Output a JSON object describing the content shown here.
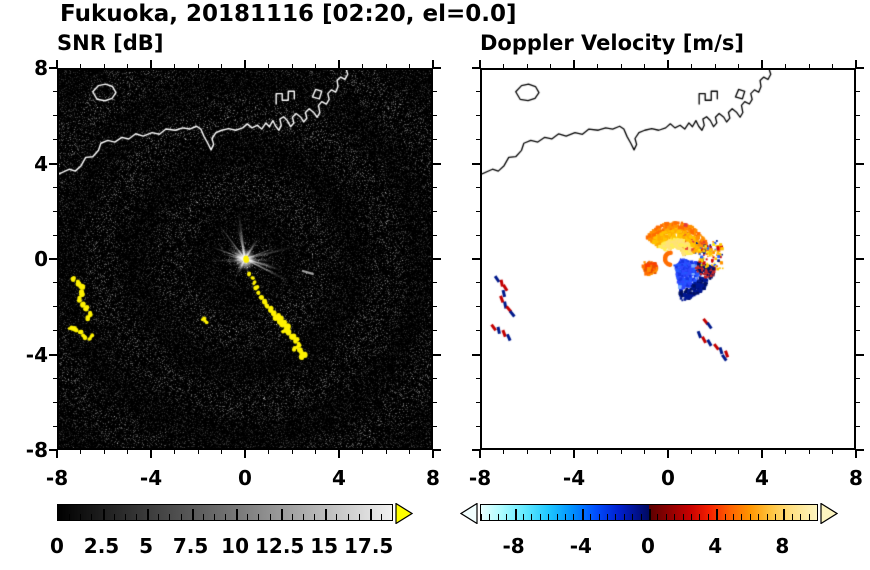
{
  "figure_title": "Fukuoka, 20181116 [02:20, el=0.0]",
  "chart_data": [
    {
      "type": "heatmap",
      "title": "SNR [dB]",
      "xlim": [
        -8,
        8
      ],
      "ylim": [
        -8,
        8
      ],
      "major_ticks": [
        -8,
        -4,
        0,
        4,
        8
      ],
      "minor_tick_step": 1,
      "x_tick_labels": [
        "-8",
        "-4",
        "0",
        "4",
        "8"
      ],
      "y_tick_labels": [
        "8",
        "4",
        "0",
        "-4",
        "-8"
      ],
      "background_color": "#000000",
      "coastline_color": "#ffffff",
      "colorbar": {
        "min": 0,
        "max": 18.75,
        "minor_step": 0.625,
        "tick_values": [
          0,
          2.5,
          5,
          7.5,
          10,
          12.5,
          15,
          17.5
        ],
        "tick_labels": [
          "0",
          "2.5",
          "5",
          "7.5",
          "10",
          "12.5",
          "15",
          "17.5"
        ],
        "stops": [
          [
            0,
            "#000000"
          ],
          [
            0.5,
            "#6f6f6f"
          ],
          [
            1,
            "#f0f0f0"
          ]
        ],
        "over_arrow": "#ffff00"
      },
      "features": {
        "radar_center": [
          0,
          0
        ],
        "ray_count": 46,
        "echo_color": "#fff200",
        "extra_streaks": [
          [
            2.45,
            -0.5,
            2.95,
            -0.64
          ]
        ],
        "echo_clusters": {
          "west_arc": [
            [
              -7.35,
              -0.85,
              2.2
            ],
            [
              -7.15,
              -1.0,
              2.6
            ],
            [
              -7.0,
              -1.2,
              2.4
            ],
            [
              -7.05,
              -1.45,
              2.8
            ],
            [
              -7.15,
              -1.7,
              2.4
            ],
            [
              -7.0,
              -1.95,
              2.6
            ],
            [
              -6.85,
              -2.1,
              2.2
            ],
            [
              -6.7,
              -2.3,
              2.6
            ],
            [
              -6.78,
              -2.5,
              2.0
            ]
          ],
          "west_lower_arc": [
            [
              -7.5,
              -2.9,
              2.0
            ],
            [
              -7.3,
              -3.0,
              2.4
            ],
            [
              -7.1,
              -3.12,
              2.2
            ],
            [
              -6.92,
              -3.3,
              2.4
            ],
            [
              -6.72,
              -3.42,
              2.0
            ],
            [
              -6.58,
              -3.28,
              1.8
            ]
          ],
          "southeast_chain": [
            [
              0.18,
              -0.6,
              1.6
            ],
            [
              0.3,
              -0.8,
              1.8
            ],
            [
              0.38,
              -1.02,
              1.8
            ],
            [
              0.48,
              -1.22,
              2.0
            ],
            [
              0.55,
              -1.45,
              1.8
            ],
            [
              0.68,
              -1.62,
              2.0
            ],
            [
              0.82,
              -1.8,
              2.2
            ],
            [
              0.95,
              -2.0,
              2.0
            ],
            [
              1.08,
              -2.12,
              2.2
            ],
            [
              1.22,
              -2.3,
              2.4
            ],
            [
              1.38,
              -2.45,
              2.6
            ],
            [
              1.52,
              -2.58,
              2.8
            ],
            [
              1.68,
              -2.72,
              3.0
            ],
            [
              1.83,
              -2.86,
              2.8
            ],
            [
              1.7,
              -3.02,
              2.2
            ],
            [
              1.92,
              -3.12,
              2.6
            ],
            [
              2.06,
              -3.3,
              2.8
            ],
            [
              2.2,
              -3.46,
              2.6
            ],
            [
              2.32,
              -3.62,
              2.4
            ],
            [
              2.16,
              -3.78,
              2.0
            ],
            [
              2.36,
              -3.88,
              2.4
            ],
            [
              2.5,
              -4.0,
              2.6
            ],
            [
              2.42,
              -4.16,
              2.0
            ]
          ],
          "small_dash": [
            [
              -1.78,
              -2.55,
              1.6
            ],
            [
              -1.66,
              -2.66,
              1.6
            ]
          ],
          "center_dot": [
            [
              0.0,
              0.0,
              2.5
            ]
          ]
        }
      }
    },
    {
      "type": "heatmap",
      "title": "Doppler Velocity [m/s]",
      "xlim": [
        -8,
        8
      ],
      "ylim": [
        -8,
        8
      ],
      "major_ticks": [
        -8,
        -4,
        0,
        4,
        8
      ],
      "minor_tick_step": 1,
      "x_tick_labels": [
        "-8",
        "-4",
        "0",
        "4",
        "8"
      ],
      "y_tick_labels": [],
      "background_color": "#ffffff",
      "coastline_color": "#000000",
      "colorbar": {
        "min": -10,
        "max": 10,
        "minor_step": 0.5,
        "tick_values": [
          -8,
          -4,
          0,
          4,
          8
        ],
        "tick_labels": [
          "-8",
          "-4",
          "0",
          "4",
          "8"
        ],
        "stops": [
          [
            0,
            "#e8ffff"
          ],
          [
            0.06,
            "#adfcff"
          ],
          [
            0.13,
            "#62e9ff"
          ],
          [
            0.2,
            "#1fc8ff"
          ],
          [
            0.27,
            "#0092ff"
          ],
          [
            0.34,
            "#004fff"
          ],
          [
            0.41,
            "#0020d0"
          ],
          [
            0.47,
            "#000f85"
          ],
          [
            0.5,
            "#000a60"
          ],
          [
            0.5,
            "#5a0000"
          ],
          [
            0.56,
            "#8f0000"
          ],
          [
            0.62,
            "#c60000"
          ],
          [
            0.68,
            "#f52000"
          ],
          [
            0.74,
            "#ff6000"
          ],
          [
            0.8,
            "#ff9500"
          ],
          [
            0.86,
            "#ffc23c"
          ],
          [
            0.92,
            "#ffdf80"
          ],
          [
            1,
            "#fdf5c0"
          ]
        ],
        "under_arrow": "#f2ffff",
        "over_arrow": "#fdf5c0"
      },
      "features": {
        "fan": {
          "center": [
            0.3,
            0.12
          ],
          "r": [
            0.35,
            1.45
          ],
          "theta_deg": [
            10,
            150
          ],
          "count": 700,
          "outer": [
            "#ff9100",
            "#ff6d00"
          ],
          "mid": [
            "#ffc400",
            "#ffab00"
          ],
          "inner": [
            "#ffe27a",
            "#ffee58"
          ],
          "red": "#e53935",
          "navy": "#001a8c"
        },
        "wedge": {
          "center": [
            0.25,
            0.05
          ],
          "r": [
            0.25,
            1.85
          ],
          "theta_deg": [
            -80,
            -12
          ],
          "count": 520,
          "core": [
            "#2457ff",
            "#2f48ff",
            "#1836e6"
          ],
          "outer": [
            "#001792",
            "#001060"
          ],
          "edge": [
            "#c62828",
            "#001060"
          ],
          "light": "#7fb0ff"
        },
        "west_blob": {
          "center": [
            -0.78,
            -0.38
          ],
          "sigma": 0.17,
          "count": 170,
          "colors": [
            "#ff6d00",
            "#ff3d00",
            "#ff9100",
            "#e65100"
          ]
        },
        "east_speckle": {
          "center": [
            0.3,
            0.0
          ],
          "r": [
            1.05,
            2.1
          ],
          "theta_deg": [
            -14,
            24
          ],
          "count": 130,
          "colors": [
            "#ffea00",
            "#ff9100",
            "#d50000",
            "#001a8c",
            "#2962ff",
            "#ffc400"
          ]
        },
        "center_hole": {
          "center": [
            0.22,
            0.05
          ],
          "radius_px": 7,
          "ring_color": "#ff6d00"
        },
        "far_specks": [
          [
            -7.35,
            -0.85,
            "#001a8c"
          ],
          [
            -7.15,
            -1.02,
            "#c40000"
          ],
          [
            -7.0,
            -1.22,
            "#c40000"
          ],
          [
            -7.06,
            -1.46,
            "#001a8c"
          ],
          [
            -7.15,
            -1.7,
            "#c40000"
          ],
          [
            -7.0,
            -1.95,
            "#001a8c"
          ],
          [
            -6.85,
            -2.12,
            "#c40000"
          ],
          [
            -6.7,
            -2.32,
            "#001a8c"
          ],
          [
            -7.5,
            -2.9,
            "#c40000"
          ],
          [
            -7.28,
            -3.02,
            "#001a8c"
          ],
          [
            -7.05,
            -3.15,
            "#c40000"
          ],
          [
            -6.85,
            -3.32,
            "#001a8c"
          ],
          [
            1.62,
            -2.65,
            "#c40000"
          ],
          [
            1.78,
            -2.82,
            "#001a8c"
          ],
          [
            1.35,
            -3.2,
            "#001a8c"
          ],
          [
            1.55,
            -3.42,
            "#c40000"
          ],
          [
            1.78,
            -3.55,
            "#001a8c"
          ],
          [
            2.08,
            -3.72,
            "#c40000"
          ],
          [
            2.28,
            -3.88,
            "#001a8c"
          ],
          [
            2.52,
            -4.02,
            "#c40000"
          ],
          [
            2.42,
            -4.18,
            "#001a8c"
          ]
        ]
      }
    }
  ],
  "coastline": {
    "paths": [
      [
        [
          -8.0,
          3.6
        ],
        [
          -7.55,
          3.8
        ],
        [
          -7.3,
          3.72
        ],
        [
          -7.05,
          3.95
        ],
        [
          -6.85,
          4.3
        ],
        [
          -6.55,
          4.33
        ],
        [
          -6.3,
          4.6
        ],
        [
          -6.2,
          4.9
        ],
        [
          -5.9,
          5.02
        ],
        [
          -5.6,
          4.95
        ],
        [
          -5.3,
          5.15
        ],
        [
          -5.0,
          5.08
        ],
        [
          -4.7,
          5.3
        ],
        [
          -4.38,
          5.2
        ],
        [
          -4.0,
          5.35
        ],
        [
          -3.68,
          5.28
        ],
        [
          -3.4,
          5.5
        ],
        [
          -3.0,
          5.45
        ],
        [
          -2.68,
          5.55
        ],
        [
          -2.38,
          5.5
        ],
        [
          -2.08,
          5.62
        ],
        [
          -1.9,
          5.5
        ],
        [
          -1.76,
          5.18
        ],
        [
          -1.6,
          4.9
        ],
        [
          -1.46,
          4.62
        ],
        [
          -1.35,
          4.85
        ],
        [
          -1.42,
          5.1
        ],
        [
          -1.25,
          5.35
        ],
        [
          -1.0,
          5.45
        ],
        [
          -0.7,
          5.52
        ],
        [
          -0.4,
          5.45
        ],
        [
          -0.1,
          5.55
        ],
        [
          0.1,
          5.72
        ],
        [
          0.3,
          5.55
        ],
        [
          0.52,
          5.66
        ],
        [
          0.72,
          5.5
        ],
        [
          0.9,
          5.76
        ],
        [
          1.05,
          5.6
        ],
        [
          1.2,
          5.86
        ],
        [
          1.32,
          5.62
        ],
        [
          1.46,
          5.45
        ],
        [
          1.56,
          5.66
        ],
        [
          1.5,
          5.92
        ],
        [
          1.66,
          6.02
        ],
        [
          1.82,
          5.86
        ],
        [
          1.96,
          5.6
        ],
        [
          2.1,
          5.76
        ],
        [
          2.04,
          6.0
        ],
        [
          2.2,
          6.16
        ],
        [
          2.4,
          6.0
        ],
        [
          2.52,
          5.8
        ],
        [
          2.66,
          5.96
        ],
        [
          2.6,
          6.2
        ],
        [
          2.76,
          6.36
        ],
        [
          2.96,
          6.2
        ],
        [
          3.1,
          6.0
        ],
        [
          3.22,
          6.2
        ],
        [
          3.16,
          6.5
        ],
        [
          3.3,
          6.66
        ],
        [
          3.5,
          6.56
        ],
        [
          3.62,
          6.76
        ],
        [
          3.56,
          7.0
        ],
        [
          3.72,
          7.16
        ],
        [
          3.9,
          7.06
        ],
        [
          4.0,
          7.3
        ],
        [
          3.96,
          7.56
        ],
        [
          4.12,
          7.7
        ],
        [
          4.3,
          7.6
        ],
        [
          4.42,
          7.82
        ],
        [
          4.36,
          8.0
        ]
      ],
      [
        [
          -6.55,
          7.08
        ],
        [
          -6.3,
          7.34
        ],
        [
          -6.0,
          7.4
        ],
        [
          -5.7,
          7.3
        ],
        [
          -5.55,
          7.04
        ],
        [
          -5.72,
          6.8
        ],
        [
          -6.02,
          6.7
        ],
        [
          -6.36,
          6.76
        ],
        [
          -6.55,
          7.08
        ]
      ],
      [
        [
          1.34,
          6.56
        ],
        [
          1.34,
          7.0
        ],
        [
          1.6,
          7.0
        ],
        [
          1.6,
          6.72
        ],
        [
          1.86,
          6.72
        ],
        [
          1.86,
          7.1
        ],
        [
          2.12,
          7.1
        ],
        [
          2.12,
          6.78
        ]
      ],
      [
        [
          2.9,
          6.86
        ],
        [
          3.04,
          7.18
        ],
        [
          3.3,
          7.1
        ],
        [
          3.2,
          6.78
        ],
        [
          2.9,
          6.86
        ]
      ]
    ]
  }
}
